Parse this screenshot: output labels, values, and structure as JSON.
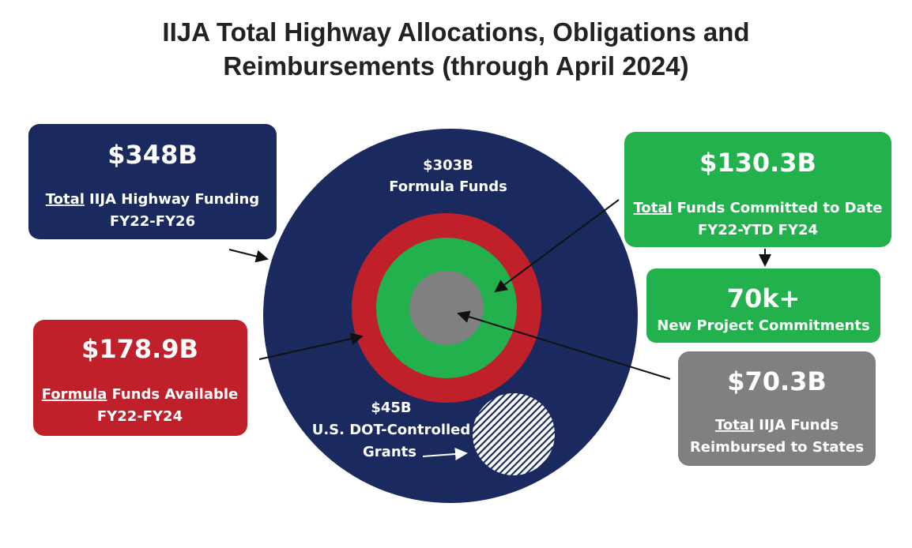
{
  "title": [
    "IIJA Total Highway Allocations, Obligations and",
    "Reimbursements (through April 2024)"
  ],
  "circle_labels": {
    "formula": {
      "amount": "$303B",
      "label": "Formula Funds"
    },
    "grants": {
      "amount": "$45B",
      "line1": "U.S. DOT-Controlled",
      "line2": "Grants"
    }
  },
  "boxes": {
    "total": {
      "amount": "$348B",
      "underlined": "Total",
      "rest": "IIJA Highway Funding",
      "line2": "FY22-FY26"
    },
    "available": {
      "amount": "$178.9B",
      "underlined": "Formula",
      "rest": "Funds Available",
      "line2": "FY22-FY24"
    },
    "committed": {
      "amount": "$130.3B",
      "underlined": "Total",
      "rest": "Funds Committed to Date",
      "line2": "FY22-YTD FY24"
    },
    "projects": {
      "amount": "70k+",
      "line1": "New Project Commitments"
    },
    "reimbursed": {
      "amount": "$70.3B",
      "underlined": "Total",
      "rest": "IIJA Funds",
      "line2": "Reimbursed to States"
    }
  }
}
